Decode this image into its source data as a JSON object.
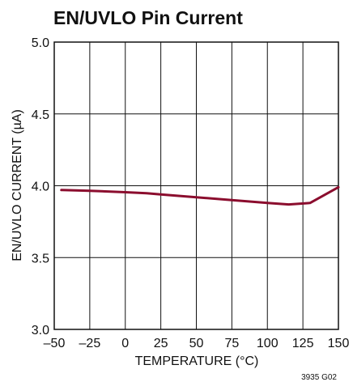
{
  "chart_data": {
    "type": "line",
    "title": "EN/UVLO Pin Current",
    "xlabel": "TEMPERATURE (°C)",
    "ylabel": "EN/UVLO CURRENT (µA)",
    "xlim": [
      -50,
      150
    ],
    "ylim": [
      3.0,
      5.0
    ],
    "x_ticks": [
      -50,
      -25,
      0,
      25,
      50,
      75,
      100,
      125,
      150
    ],
    "x_tick_labels": [
      "–50",
      "–25",
      "0",
      "25",
      "50",
      "75",
      "100",
      "125",
      "150"
    ],
    "y_ticks": [
      3.0,
      3.5,
      4.0,
      4.5,
      5.0
    ],
    "y_tick_labels": [
      "3.0",
      "3.5",
      "4.0",
      "4.5",
      "5.0"
    ],
    "grid": true,
    "series": [
      {
        "color": "#8b0d2e",
        "x": [
          -45,
          -25,
          0,
          15,
          25,
          50,
          75,
          100,
          115,
          130,
          150
        ],
        "y": [
          3.97,
          3.965,
          3.955,
          3.948,
          3.94,
          3.92,
          3.9,
          3.88,
          3.87,
          3.88,
          3.99
        ]
      }
    ],
    "figure_code": "3935 G02"
  }
}
